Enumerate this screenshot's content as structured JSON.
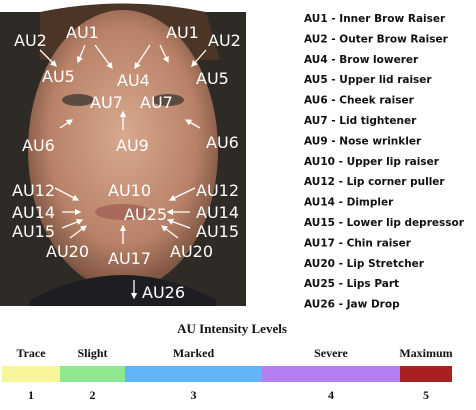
{
  "face_labels": [
    "AU2",
    "AU1",
    "AU1",
    "AU2",
    "AU5",
    "AU4",
    "AU5",
    "AU7",
    "AU7",
    "AU6",
    "AU9",
    "AU6",
    "AU12",
    "AU10",
    "AU12",
    "AU14",
    "AU25",
    "AU14",
    "AU15",
    "AU15",
    "AU20",
    "AU17",
    "AU20",
    "AU26"
  ],
  "action_units": [
    "AU1 - Inner Brow Raiser",
    "AU2 - Outer Brow Raiser",
    "AU4 - Brow lowerer",
    "AU5 - Upper lid raiser",
    "AU6 - Cheek raiser",
    "AU7 - Lid tightener",
    "AU9 - Nose wrinkler",
    "AU10 - Upper lip raiser",
    "AU12 - Lip corner puller",
    "AU14 - Dimpler",
    "AU15 - Lower lip depressor",
    "AU17 - Chin raiser",
    "AU20 - Lip Stretcher",
    "AU25 - Lips Part",
    "AU26 - Jaw Drop"
  ],
  "intensity": {
    "title": "AU Intensity Levels",
    "levels": [
      {
        "name": "Trace",
        "number": "1",
        "color": "#f7f59a"
      },
      {
        "name": "Slight",
        "number": "2",
        "color": "#8fe88f"
      },
      {
        "name": "Marked",
        "number": "3",
        "color": "#61b5f4"
      },
      {
        "name": "Severe",
        "number": "4",
        "color": "#b27ff0"
      },
      {
        "name": "Maximum",
        "number": "5",
        "color": "#a82020"
      }
    ]
  }
}
